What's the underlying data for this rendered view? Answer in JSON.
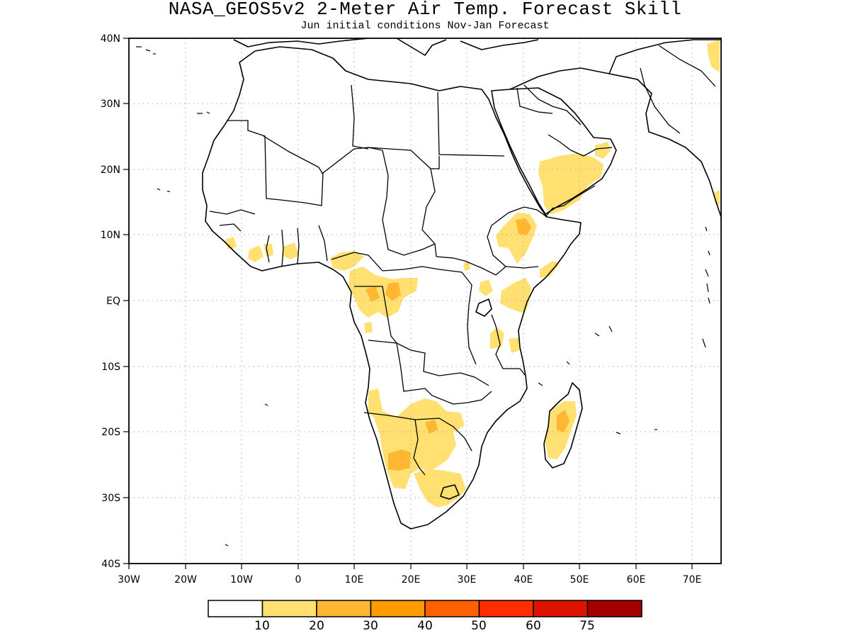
{
  "title": "NASA_GEOS5v2 2-Meter Air Temp. Forecast Skill",
  "subtitle": "Jun initial conditions  Nov-Jan Forecast",
  "map": {
    "lon_range": [
      -30,
      75
    ],
    "lat_range": [
      -40,
      40
    ],
    "lon_ticks": [
      "30W",
      "20W",
      "10W",
      "0",
      "10E",
      "20E",
      "30E",
      "40E",
      "50E",
      "60E",
      "70E"
    ],
    "lat_ticks": [
      "40S",
      "30S",
      "20S",
      "10S",
      "EQ",
      "10N",
      "20N",
      "30N",
      "40N"
    ],
    "grid": "dotted",
    "region": "Africa"
  },
  "colorbar": {
    "labels": [
      "10",
      "20",
      "30",
      "40",
      "50",
      "60",
      "75"
    ],
    "colors": [
      "#ffffff",
      "#ffe070",
      "#ffb732",
      "#ff9a00",
      "#ff6000",
      "#ff2e00",
      "#dd1500",
      "#a50000"
    ]
  }
}
